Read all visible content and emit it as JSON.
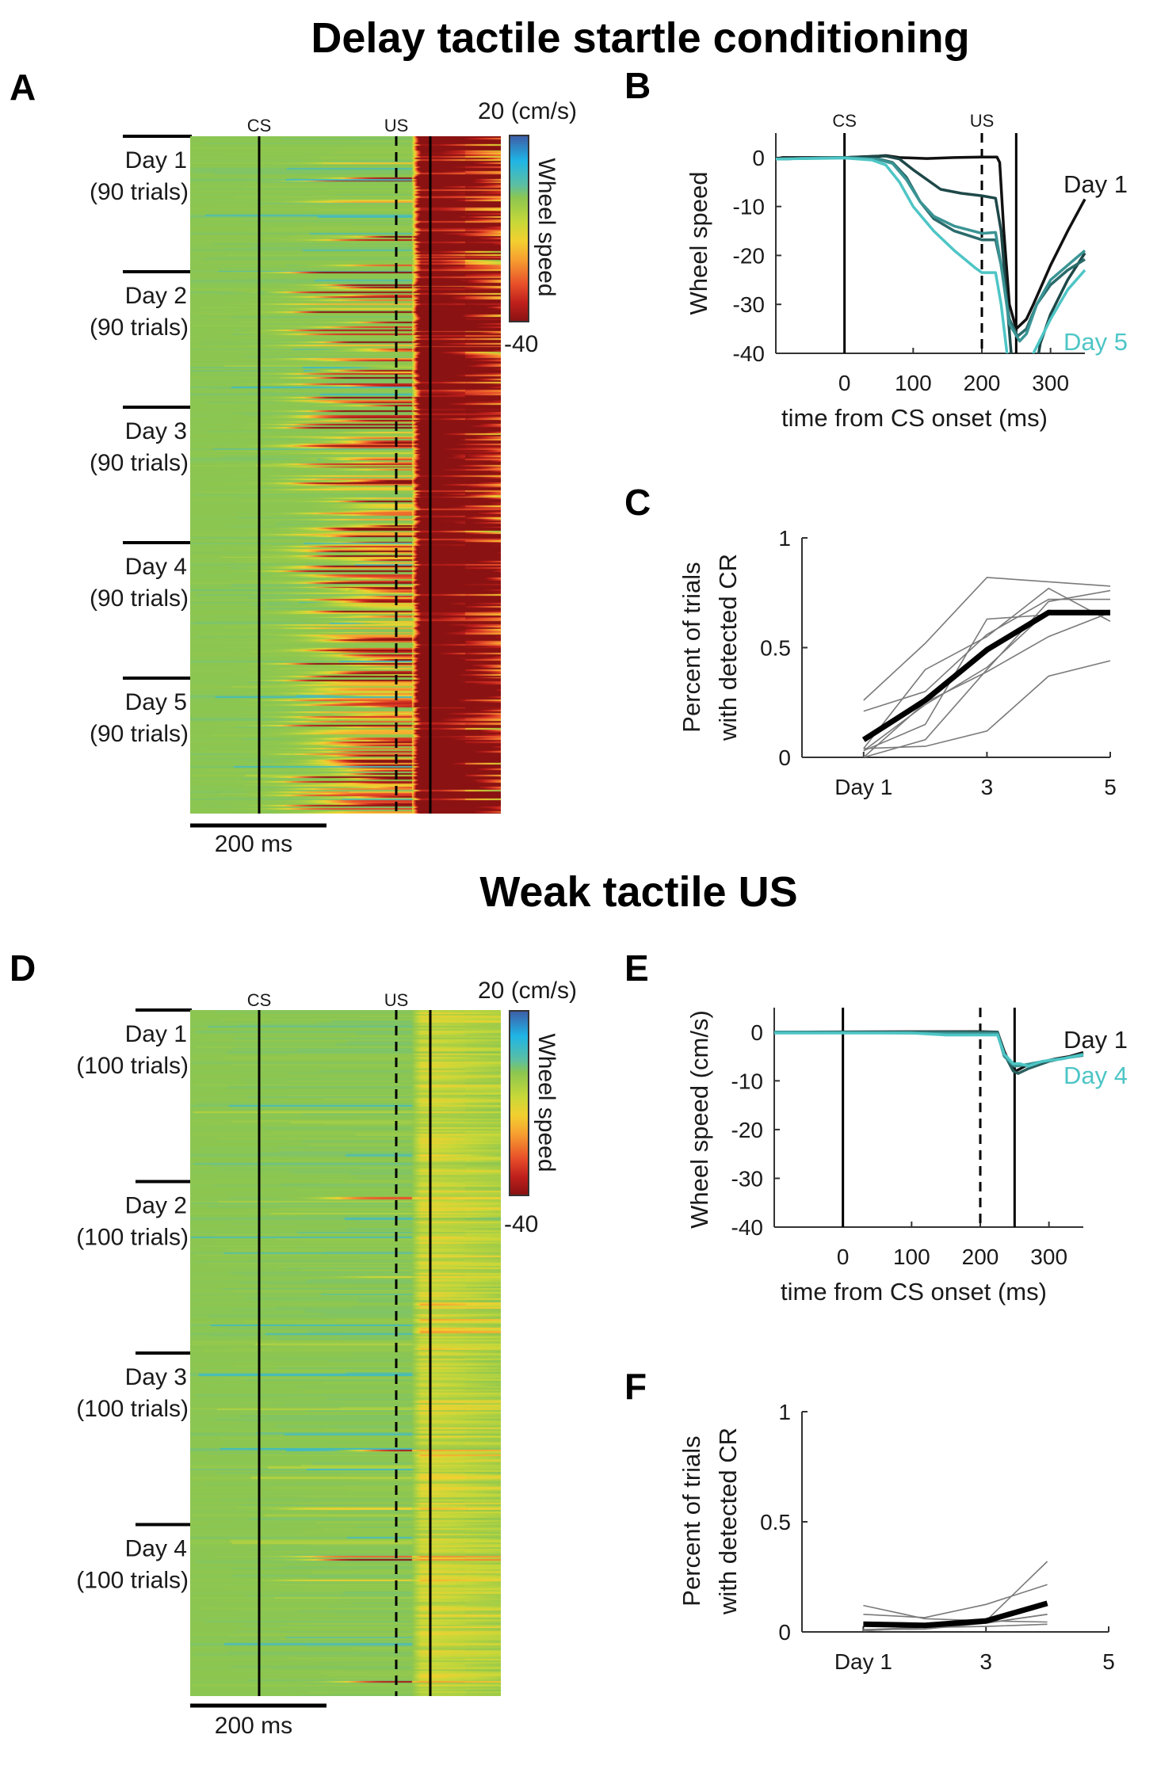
{
  "figure_titles": {
    "top": "Delay tactile startle conditioning",
    "bottom": "Weak tactile US"
  },
  "panel_labels": {
    "A": "A",
    "B": "B",
    "C": "C",
    "D": "D",
    "E": "E",
    "F": "F"
  },
  "heatmaps": {
    "A": {
      "type": "heatmap",
      "event_labels": {
        "cs": "CS",
        "us": "US"
      },
      "colorbar": {
        "max_label": "20 (cm/s)",
        "min_label": "-40",
        "label": "Wheel speed",
        "max": 20,
        "min": -40
      },
      "days": [
        {
          "label": "Day 1",
          "trials": "(90 trials)"
        },
        {
          "label": "Day 2",
          "trials": "(90 trials)"
        },
        {
          "label": "Day 3",
          "trials": "(90 trials)"
        },
        {
          "label": "Day 4",
          "trials": "(90 trials)"
        },
        {
          "label": "Day 5",
          "trials": "(90 trials)"
        }
      ],
      "scale_bar": "200 ms"
    },
    "D": {
      "type": "heatmap",
      "event_labels": {
        "cs": "CS",
        "us": "US"
      },
      "colorbar": {
        "max_label": "20 (cm/s)",
        "min_label": "-40",
        "label": "Wheel speed",
        "max": 20,
        "min": -40
      },
      "days": [
        {
          "label": "Day 1",
          "trials": "(100 trials)"
        },
        {
          "label": "Day 2",
          "trials": "(100 trials)"
        },
        {
          "label": "Day 3",
          "trials": "(100 trials)"
        },
        {
          "label": "Day 4",
          "trials": "(100 trials)"
        }
      ],
      "scale_bar": "200 ms"
    },
    "colormap": [
      "#3d5fa8",
      "#1fb5e6",
      "#5dbfa0",
      "#8cc650",
      "#c8d838",
      "#f2d030",
      "#f7a030",
      "#e8502a",
      "#c0201c",
      "#8a1212"
    ]
  },
  "chart_data": [
    {
      "panel": "B",
      "type": "line",
      "xlabel": "time from CS onset (ms)",
      "ylabel": "Wheel speed",
      "xlim": [
        -100,
        350
      ],
      "ylim": [
        -40,
        5
      ],
      "xticks": [
        0,
        100,
        200,
        300
      ],
      "xticklabels": [
        "0",
        "100",
        "200",
        "300"
      ],
      "yticks": [
        0,
        -10,
        -20,
        -30,
        -40
      ],
      "yticklabels": [
        "0",
        "-10",
        "-20",
        "-30",
        "-40"
      ],
      "event_lines": [
        {
          "label": "CS",
          "x": 0,
          "style": "solid"
        },
        {
          "label": "US",
          "x": 200,
          "style": "dashed"
        },
        {
          "label": "",
          "x": 250,
          "style": "solid"
        }
      ],
      "series": [
        {
          "name": "Day 1",
          "color": "#111111",
          "points": [
            [
              -100,
              -0.3
            ],
            [
              -90,
              0
            ],
            [
              0,
              0
            ],
            [
              50,
              0.3
            ],
            [
              60,
              0.4
            ],
            [
              80,
              0
            ],
            [
              120,
              -0.2
            ],
            [
              160,
              0
            ],
            [
              200,
              0.1
            ],
            [
              222,
              0.1
            ],
            [
              226,
              -1
            ],
            [
              232,
              -15
            ],
            [
              240,
              -30
            ],
            [
              250,
              -35
            ],
            [
              265,
              -33
            ],
            [
              275,
              -30
            ],
            [
              300,
              -22
            ],
            [
              325,
              -15
            ],
            [
              350,
              -8.5
            ]
          ]
        },
        {
          "color": "#1e4848",
          "points": [
            [
              -100,
              -0.3
            ],
            [
              0,
              0
            ],
            [
              60,
              0.3
            ],
            [
              80,
              -0.3
            ],
            [
              100,
              -2.5
            ],
            [
              120,
              -4.5
            ],
            [
              140,
              -6.5
            ],
            [
              170,
              -7.3
            ],
            [
              200,
              -7.8
            ],
            [
              220,
              -8.3
            ],
            [
              228,
              -15
            ],
            [
              238,
              -32
            ],
            [
              245,
              -44
            ],
            [
              278,
              -44
            ],
            [
              285,
              -38
            ],
            [
              300,
              -32
            ],
            [
              325,
              -25
            ],
            [
              350,
              -19.5
            ]
          ]
        },
        {
          "color": "#2b6b6b",
          "points": [
            [
              -100,
              -0.3
            ],
            [
              0,
              0
            ],
            [
              50,
              -0.3
            ],
            [
              70,
              -1
            ],
            [
              90,
              -4
            ],
            [
              110,
              -9
            ],
            [
              130,
              -12.5
            ],
            [
              160,
              -15
            ],
            [
              200,
              -16.8
            ],
            [
              220,
              -16.8
            ],
            [
              228,
              -22
            ],
            [
              240,
              -33
            ],
            [
              252,
              -36.5
            ],
            [
              265,
              -35
            ],
            [
              280,
              -30
            ],
            [
              300,
              -26
            ],
            [
              325,
              -23
            ],
            [
              350,
              -20.8
            ]
          ]
        },
        {
          "color": "#3a9494",
          "points": [
            [
              -100,
              -0.3
            ],
            [
              0,
              0
            ],
            [
              50,
              -0.4
            ],
            [
              70,
              -1.2
            ],
            [
              90,
              -4.5
            ],
            [
              110,
              -9
            ],
            [
              130,
              -12
            ],
            [
              160,
              -14
            ],
            [
              200,
              -15.5
            ],
            [
              220,
              -15.3
            ],
            [
              228,
              -22
            ],
            [
              240,
              -34
            ],
            [
              255,
              -37.5
            ],
            [
              265,
              -36
            ],
            [
              280,
              -30
            ],
            [
              300,
              -25
            ],
            [
              325,
              -22
            ],
            [
              350,
              -19
            ]
          ]
        },
        {
          "name": "Day 5",
          "color": "#4ec5c5",
          "points": [
            [
              -100,
              -0.3
            ],
            [
              0,
              -0.1
            ],
            [
              40,
              -0.5
            ],
            [
              60,
              -1.5
            ],
            [
              80,
              -5
            ],
            [
              100,
              -10
            ],
            [
              130,
              -15
            ],
            [
              160,
              -19
            ],
            [
              190,
              -22.5
            ],
            [
              200,
              -23.5
            ],
            [
              220,
              -23.5
            ],
            [
              228,
              -30
            ],
            [
              240,
              -44
            ],
            [
              268,
              -44
            ],
            [
              275,
              -40
            ],
            [
              300,
              -33
            ],
            [
              325,
              -27
            ],
            [
              350,
              -23
            ]
          ]
        }
      ]
    },
    {
      "panel": "C",
      "type": "line",
      "xlabel": "",
      "ylabel": [
        "Percent of trials",
        "with detected CR"
      ],
      "xlim": [
        0,
        5
      ],
      "ylim": [
        0,
        1
      ],
      "xticks": [
        1,
        3,
        5
      ],
      "xticklabels": [
        "Day 1",
        "3",
        "5"
      ],
      "yticks": [
        0,
        0.5,
        1
      ],
      "yticklabels": [
        "0",
        "0.5",
        "1"
      ],
      "x": [
        1,
        2,
        3,
        4,
        5
      ],
      "individuals_color": "#7a7a7a",
      "individuals": [
        [
          0.26,
          0.52,
          0.82,
          0.8,
          0.78
        ],
        [
          0.21,
          0.3,
          0.56,
          0.72,
          0.72
        ],
        [
          0.04,
          0.4,
          0.55,
          0.77,
          0.62
        ],
        [
          0.03,
          0.15,
          0.63,
          0.65,
          0.65
        ],
        [
          0.0,
          0.08,
          0.4,
          0.71,
          0.76
        ],
        [
          0.04,
          0.05,
          0.12,
          0.37,
          0.44
        ],
        [
          0.0,
          0.25,
          0.39,
          0.55,
          0.66
        ],
        [
          0.03,
          0.24,
          0.41,
          0.67,
          0.65
        ]
      ],
      "mean_color": "#000000",
      "mean": [
        0.08,
        0.26,
        0.49,
        0.66,
        0.66
      ]
    },
    {
      "panel": "E",
      "type": "line",
      "xlabel": "time from CS onset (ms)",
      "ylabel": "Wheel speed (cm/s)",
      "xlim": [
        -100,
        350
      ],
      "ylim": [
        -40,
        5
      ],
      "xticks": [
        0,
        100,
        200,
        300
      ],
      "xticklabels": [
        "0",
        "100",
        "200",
        "300"
      ],
      "yticks": [
        0,
        -10,
        -20,
        -30,
        -40
      ],
      "yticklabels": [
        "0",
        "-10",
        "-20",
        "-30",
        "-40"
      ],
      "event_lines": [
        {
          "label": "",
          "x": 0,
          "style": "solid"
        },
        {
          "label": "",
          "x": 200,
          "style": "dashed"
        },
        {
          "label": "",
          "x": 250,
          "style": "solid"
        }
      ],
      "series": [
        {
          "name": "Day 1",
          "color": "#111111",
          "points": [
            [
              -100,
              0
            ],
            [
              200,
              0.1
            ],
            [
              225,
              0
            ],
            [
              235,
              -4
            ],
            [
              245,
              -7
            ],
            [
              252,
              -8
            ],
            [
              265,
              -7
            ],
            [
              285,
              -6.3
            ],
            [
              310,
              -5.5
            ],
            [
              330,
              -5
            ],
            [
              350,
              -4.2
            ]
          ]
        },
        {
          "color": "#2a6060",
          "points": [
            [
              -100,
              0
            ],
            [
              200,
              0
            ],
            [
              225,
              0
            ],
            [
              235,
              -4.5
            ],
            [
              248,
              -8
            ],
            [
              255,
              -8.5
            ],
            [
              270,
              -7.5
            ],
            [
              300,
              -6
            ],
            [
              350,
              -4.5
            ]
          ]
        },
        {
          "color": "#3a9494",
          "points": [
            [
              -100,
              0
            ],
            [
              200,
              -0.3
            ],
            [
              225,
              -0.3
            ],
            [
              235,
              -5
            ],
            [
              250,
              -7
            ],
            [
              262,
              -6.8
            ],
            [
              300,
              -5.8
            ],
            [
              350,
              -4.8
            ]
          ]
        },
        {
          "name": "Day 4",
          "color": "#4ec5c5",
          "points": [
            [
              -100,
              -0.2
            ],
            [
              100,
              -0.2
            ],
            [
              150,
              -0.6
            ],
            [
              225,
              -0.6
            ],
            [
              235,
              -4.5
            ],
            [
              248,
              -6.5
            ],
            [
              258,
              -6.5
            ],
            [
              270,
              -7
            ],
            [
              290,
              -6
            ],
            [
              320,
              -5.5
            ],
            [
              350,
              -4.6
            ]
          ]
        }
      ]
    },
    {
      "panel": "F",
      "type": "line",
      "xlabel": "",
      "ylabel": [
        "Percent of trials",
        "with detected CR"
      ],
      "xlim": [
        0,
        5
      ],
      "ylim": [
        0,
        1
      ],
      "xticks": [
        1,
        3,
        5
      ],
      "xticklabels": [
        "Day 1",
        "3",
        "5"
      ],
      "yticks": [
        0,
        0.5,
        1
      ],
      "yticklabels": [
        "0",
        "0.5",
        "1"
      ],
      "x": [
        1,
        2,
        3,
        4
      ],
      "individuals_color": "#7a7a7a",
      "individuals": [
        [
          0.12,
          0.06,
          0.05,
          0.32
        ],
        [
          0.08,
          0.065,
          0.125,
          0.215
        ],
        [
          0.01,
          0.013,
          0.04,
          0.08
        ],
        [
          0.005,
          0.02,
          0.05,
          0.045
        ],
        [
          0.01,
          0.02,
          0.025,
          0.035
        ],
        [
          0.005,
          0.02,
          0.04,
          0.08
        ]
      ],
      "mean_color": "#000000",
      "mean": [
        0.035,
        0.03,
        0.05,
        0.13
      ]
    }
  ]
}
